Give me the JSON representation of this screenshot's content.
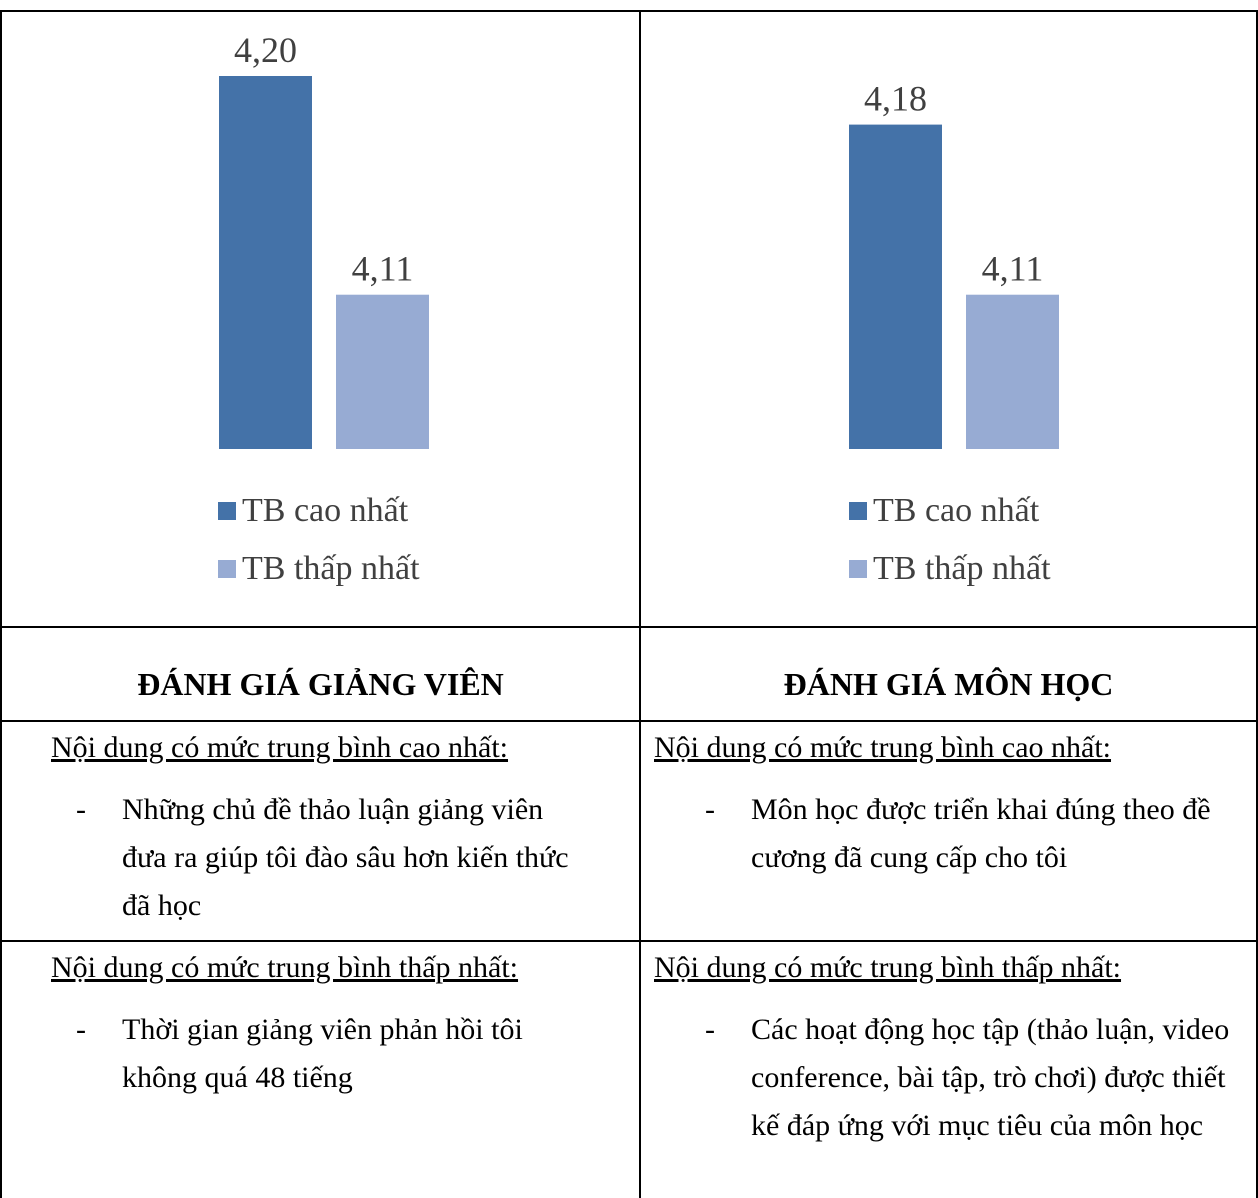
{
  "chart_data": [
    {
      "type": "bar",
      "categories": [
        "TB cao nhất",
        "TB thấp nhất"
      ],
      "values": [
        4.2,
        4.11
      ],
      "value_labels": [
        "4,20",
        "4,11"
      ],
      "colors": [
        "#4472A8",
        "#97ABD3"
      ],
      "legend": [
        "TB cao nhất",
        "TB thấp nhất"
      ],
      "legend_position": "bottom",
      "grid": false
    },
    {
      "type": "bar",
      "categories": [
        "TB cao nhất",
        "TB thấp nhất"
      ],
      "values": [
        4.18,
        4.11
      ],
      "value_labels": [
        "4,18",
        "4,11"
      ],
      "colors": [
        "#4472A8",
        "#97ABD3"
      ],
      "legend": [
        "TB cao nhất",
        "TB thấp nhất"
      ],
      "legend_position": "bottom",
      "grid": false
    }
  ],
  "left": {
    "title": "ĐÁNH GIÁ GIẢNG VIÊN",
    "highest_heading": "Nội dung có mức trung bình cao nhất:",
    "highest_item": "Những chủ đề thảo luận giảng viên đưa ra giúp tôi đào sâu hơn kiến thức đã học",
    "lowest_heading": "Nội dung có mức trung bình thấp nhất:",
    "lowest_item": "Thời gian giảng viên phản hồi tôi không quá 48 tiếng"
  },
  "right": {
    "title": "ĐÁNH GIÁ MÔN HỌC",
    "highest_heading": "Nội dung có mức trung bình cao nhất:",
    "highest_item": "Môn học được triển khai đúng theo đề cương đã cung cấp cho tôi",
    "lowest_heading": "Nội dung có mức trung bình thấp nhất:",
    "lowest_item": "Các hoạt động học tập (thảo luận, video conference, bài tập, trò chơi) được thiết kế đáp ứng với mục tiêu của môn học"
  },
  "dash": "-"
}
